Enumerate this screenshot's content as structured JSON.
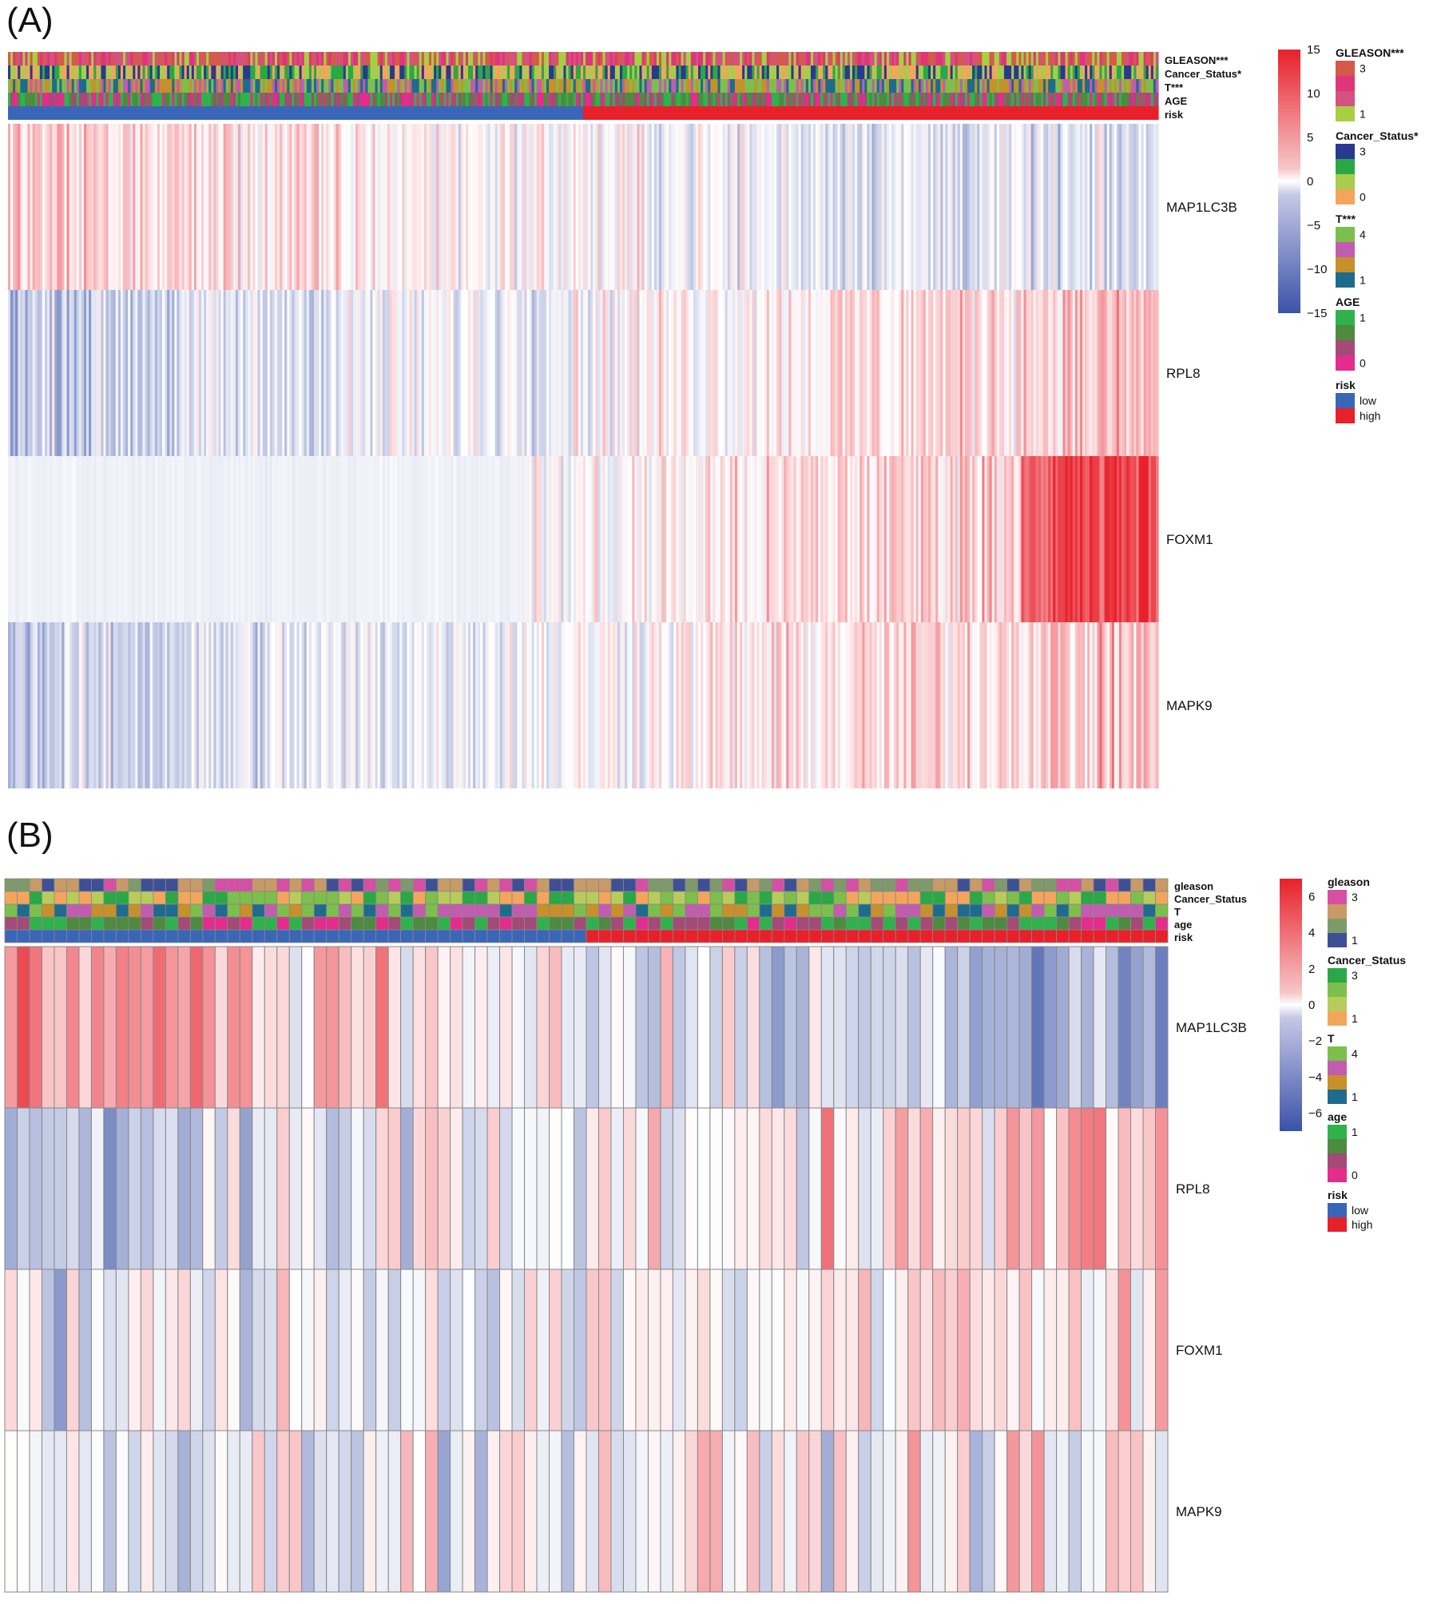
{
  "figure": {
    "panels": [
      "(A)",
      "(B)"
    ]
  },
  "chart_data": [
    {
      "type": "heatmap",
      "panel_label": "(A)",
      "n_samples": 470,
      "low_risk_fraction": 0.5,
      "genes": [
        "MAP1LC3B",
        "RPL8",
        "FOXM1",
        "MAPK9"
      ],
      "gene_trend": [
        -0.7,
        0.9,
        1.1,
        0.9
      ],
      "annotation_tracks": [
        "GLEASON***",
        "Cancer_Status*",
        "T***",
        "AGE",
        "risk"
      ],
      "colorbar": {
        "ticks": [
          15,
          10,
          5,
          0,
          -5,
          -10,
          -15
        ],
        "range": [
          -15,
          15
        ]
      },
      "legend": [
        {
          "title": "GLEASON***",
          "colors": [
            "#d45a4a",
            "#e0357a",
            "#d4527e",
            "#a7cf44"
          ],
          "labels": [
            "3",
            "1"
          ]
        },
        {
          "title": "Cancer_Status*",
          "colors": [
            "#2a3990",
            "#2aa845",
            "#a8cc4c",
            "#f4a55c"
          ],
          "labels": [
            "3",
            "0"
          ]
        },
        {
          "title": "T***",
          "colors": [
            "#7cbf4c",
            "#c25cb0",
            "#c8902a",
            "#1e6b8e"
          ],
          "labels": [
            "4",
            "1"
          ]
        },
        {
          "title": "AGE",
          "colors": [
            "#2fb24c",
            "#4e8a40",
            "#a44a76",
            "#e42c8c"
          ],
          "labels": [
            "1",
            "0"
          ]
        },
        {
          "title": "risk",
          "colors": [
            "#3a66b8",
            "#e8202a"
          ],
          "labels": [
            "low",
            "high"
          ]
        }
      ]
    },
    {
      "type": "heatmap",
      "panel_label": "(B)",
      "n_samples": 94,
      "low_risk_fraction": 0.5,
      "genes": [
        "MAP1LC3B",
        "RPL8",
        "FOXM1",
        "MAPK9"
      ],
      "gene_trend": [
        -0.9,
        0.5,
        0.2,
        0.1
      ],
      "annotation_tracks": [
        "gleason",
        "Cancer_Status",
        "T",
        "age",
        "risk"
      ],
      "colorbar": {
        "ticks": [
          6,
          4,
          2,
          0,
          -2,
          -4,
          -6
        ],
        "range": [
          -7,
          7
        ]
      },
      "legend": [
        {
          "title": "gleason",
          "colors": [
            "#d64fa4",
            "#c89a66",
            "#7f9a6a",
            "#3e4f95"
          ],
          "labels": [
            "3",
            "1"
          ]
        },
        {
          "title": "Cancer_Status",
          "colors": [
            "#2aa845",
            "#7cbf4c",
            "#b8cc5c",
            "#f4a55c"
          ],
          "labels": [
            "3",
            "1"
          ]
        },
        {
          "title": "T",
          "colors": [
            "#7cbf4c",
            "#c25cb0",
            "#c8902a",
            "#1e6b8e"
          ],
          "labels": [
            "4",
            "1"
          ]
        },
        {
          "title": "age",
          "colors": [
            "#2fb24c",
            "#4e8a40",
            "#a44a76",
            "#e42c8c"
          ],
          "labels": [
            "1",
            "0"
          ]
        },
        {
          "title": "risk",
          "colors": [
            "#3a66b8",
            "#e8202a"
          ],
          "labels": [
            "low",
            "high"
          ]
        }
      ]
    }
  ]
}
